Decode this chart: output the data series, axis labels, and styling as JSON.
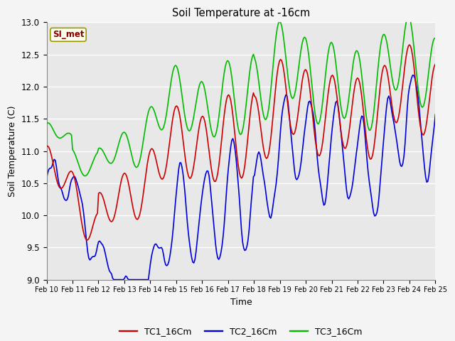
{
  "title": "Soil Temperature at -16cm",
  "xlabel": "Time",
  "ylabel": "Soil Temperature (C)",
  "ylim": [
    9.0,
    13.0
  ],
  "bg_color": "#e8e8e8",
  "grid_color": "#ffffff",
  "annotation_text": "SI_met",
  "annotation_bg": "#ffffee",
  "annotation_border": "#999900",
  "annotation_text_color": "#880000",
  "tc1_color": "#cc0000",
  "tc2_color": "#0000dd",
  "tc3_color": "#00bb00",
  "legend_labels": [
    "TC1_16Cm",
    "TC2_16Cm",
    "TC3_16Cm"
  ],
  "x_tick_labels": [
    "Feb 10",
    "Feb 11",
    "Feb 12",
    "Feb 13",
    "Feb 14",
    "Feb 15",
    "Feb 16",
    "Feb 17",
    "Feb 18",
    "Feb 19",
    "Feb 20",
    "Feb 21",
    "Feb 22",
    "Feb 23",
    "Feb 24",
    "Feb 25"
  ],
  "yticks": [
    9.0,
    9.5,
    10.0,
    10.5,
    11.0,
    11.5,
    12.0,
    12.5,
    13.0
  ],
  "linewidth": 1.2
}
